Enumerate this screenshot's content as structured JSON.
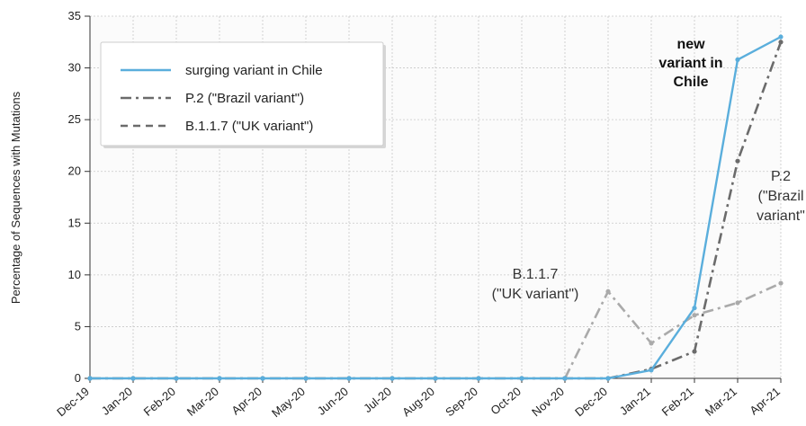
{
  "chart_data": {
    "type": "line",
    "ylabel": "Percentage of Sequences with Mutations",
    "xlabel": "",
    "ylim": [
      0,
      35
    ],
    "yticks": [
      0,
      5,
      10,
      15,
      20,
      25,
      30,
      35
    ],
    "grid": true,
    "legend_position": "top-left",
    "categories": [
      "Dec-19",
      "Jan-20",
      "Feb-20",
      "Mar-20",
      "Apr-20",
      "May-20",
      "Jun-20",
      "Jul-20",
      "Aug-20",
      "Sep-20",
      "Oct-20",
      "Nov-20",
      "Dec-20",
      "Jan-21",
      "Feb-21",
      "Mar-21",
      "Apr-21"
    ],
    "series": [
      {
        "name": "surging variant in Chile",
        "color": "#5aaedc",
        "style": "solid",
        "values": [
          0,
          0,
          0,
          0,
          0,
          0,
          0,
          0,
          0,
          0,
          0,
          0,
          0,
          0.8,
          6.8,
          30.8,
          33.0
        ]
      },
      {
        "name": "P.2 (\"Brazil variant\")",
        "color": "#6b6b6b",
        "style": "dashdot",
        "values": [
          0,
          0,
          0,
          0,
          0,
          0,
          0,
          0,
          0,
          0,
          0,
          0,
          0,
          0.9,
          2.6,
          21.0,
          32.5
        ]
      },
      {
        "name": "B.1.1.7 (\"UK variant\")",
        "color": "#aaaaaa",
        "style": "dashdot",
        "values": [
          null,
          null,
          null,
          null,
          null,
          null,
          null,
          null,
          null,
          null,
          null,
          0,
          8.4,
          3.4,
          6.1,
          7.3,
          9.2
        ]
      }
    ],
    "legend": [
      {
        "label": "surging variant in Chile",
        "color": "#5aaedc",
        "style": "solid"
      },
      {
        "label": "P.2 (\"Brazil variant\")",
        "color": "#6b6b6b",
        "style": "dashdot"
      },
      {
        "label": "B.1.1.7 (\"UK variant\")",
        "color": "#6b6b6b",
        "style": "dashed"
      }
    ],
    "annotations": [
      {
        "id": "annot-chile",
        "lines": [
          "new",
          "variant in",
          "Chile"
        ],
        "bold": true
      },
      {
        "id": "annot-brazil",
        "lines": [
          "P.2",
          "(\"Brazil",
          "variant\""
        ],
        "bold": false
      },
      {
        "id": "annot-uk",
        "lines": [
          "B.1.1.7",
          "(\"UK variant\")"
        ],
        "bold": false
      }
    ]
  }
}
